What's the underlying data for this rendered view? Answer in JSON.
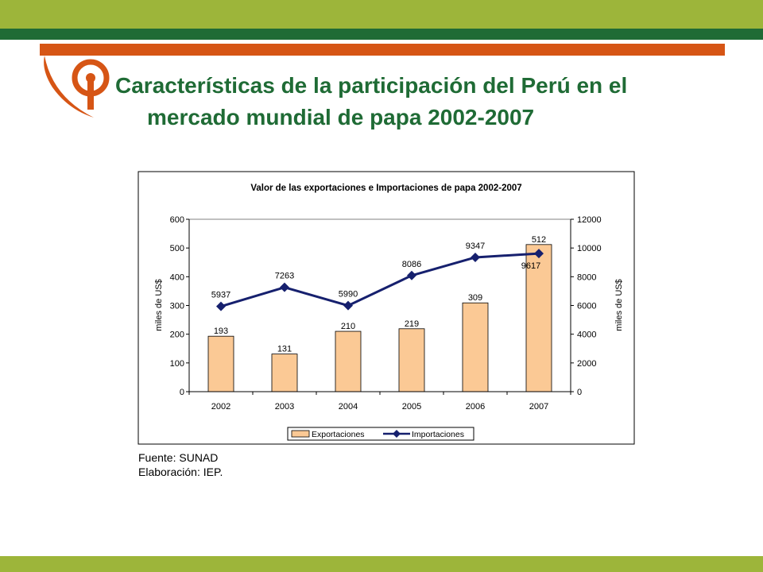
{
  "slide": {
    "title_line1": "Características de la participación del Perú en el",
    "title_line2": "mercado mundial de papa 2002-2007",
    "source_line1": "Fuente: SUNAD",
    "source_line2": "Elaboración: IEP."
  },
  "colors": {
    "lime": "#9db53a",
    "dark_green": "#1f6b35",
    "orange": "#d65515",
    "bar_fill": "#fbc995",
    "line": "#16206e"
  },
  "chart_data": {
    "type": "bar",
    "title": "Valor de las exportaciones e Importaciones de papa 2002-2007",
    "categories": [
      "2002",
      "2003",
      "2004",
      "2005",
      "2006",
      "2007"
    ],
    "ylabel": "miles de US$",
    "y2label": "miles de US$",
    "ylim": [
      0,
      600
    ],
    "y2lim": [
      0,
      12000
    ],
    "yticks": [
      "0",
      "100",
      "200",
      "300",
      "400",
      "500",
      "600"
    ],
    "y2ticks": [
      "0",
      "2000",
      "4000",
      "6000",
      "8000",
      "10000",
      "12000"
    ],
    "series": [
      {
        "name": "Exportaciones",
        "type": "bar",
        "axis": "left",
        "values": [
          193,
          131,
          210,
          219,
          309,
          512
        ],
        "labels": [
          "193",
          "131",
          "210",
          "219",
          "309",
          "512"
        ]
      },
      {
        "name": "Importaciones",
        "type": "line",
        "axis": "right",
        "marker": "diamond",
        "values": [
          5937,
          7263,
          5990,
          8086,
          9347,
          9617
        ],
        "labels": [
          "5937",
          "7263",
          "5990",
          "8086",
          "9347",
          "9617"
        ]
      }
    ],
    "legend": "bottom"
  }
}
